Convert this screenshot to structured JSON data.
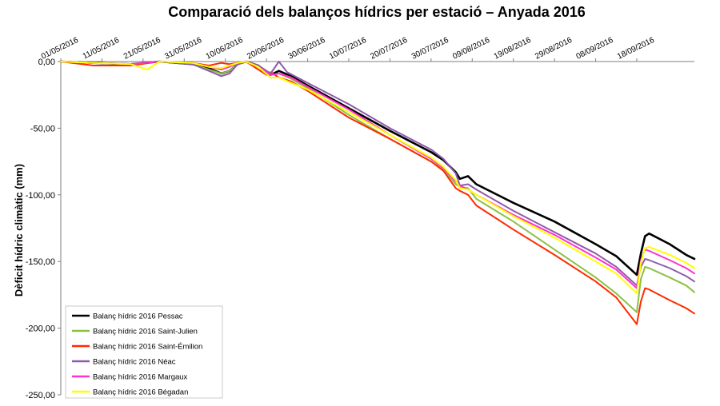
{
  "chart_data": {
    "type": "line",
    "title": "Comparació dels balanços hídrics per estació – Anyada 2016",
    "ylabel": "Dèficit hídric climàtic (mm)",
    "xlabel": "",
    "ylim": [
      -250,
      0
    ],
    "yticks": [
      "0,00",
      "-50,00",
      "-100,00",
      "-150,00",
      "-200,00",
      "-250,00"
    ],
    "ytick_values": [
      0,
      -50,
      -100,
      -150,
      -200,
      -250
    ],
    "xticks": [
      "01/05/2016",
      "11/05/2016",
      "21/05/2016",
      "31/05/2016",
      "10/06/2016",
      "20/06/2016",
      "30/06/2016",
      "10/07/2016",
      "20/07/2016",
      "30/07/2016",
      "09/08/2016",
      "19/08/2016",
      "29/08/2016",
      "08/09/2016",
      "18/09/2016"
    ],
    "grid": false,
    "legend_position": "bottom-left",
    "series": [
      {
        "name": "Balanç hídric 2016 Pessac",
        "color": "#000000",
        "width": 2.6,
        "values": [
          [
            0,
            0
          ],
          [
            8,
            -1
          ],
          [
            17,
            -2
          ],
          [
            24,
            0
          ],
          [
            32,
            -2
          ],
          [
            36,
            -5
          ],
          [
            39,
            -9
          ],
          [
            41,
            -7
          ],
          [
            43,
            -2
          ],
          [
            45,
            0
          ],
          [
            48,
            -3
          ],
          [
            51,
            -10
          ],
          [
            53,
            -7
          ],
          [
            56,
            -11
          ],
          [
            60,
            -18
          ],
          [
            70,
            -35
          ],
          [
            80,
            -52
          ],
          [
            90,
            -68
          ],
          [
            93,
            -74
          ],
          [
            96,
            -83
          ],
          [
            97,
            -88
          ],
          [
            99,
            -86
          ],
          [
            101,
            -92
          ],
          [
            110,
            -106
          ],
          [
            120,
            -120
          ],
          [
            130,
            -137
          ],
          [
            135,
            -146
          ],
          [
            140,
            -160
          ],
          [
            141,
            -144
          ],
          [
            142,
            -131
          ],
          [
            143,
            -129
          ],
          [
            148,
            -137
          ],
          [
            152,
            -145
          ],
          [
            154,
            -148
          ]
        ]
      },
      {
        "name": "Balanç hídric 2016 Saint-Julien",
        "color": "#8cc043",
        "width": 2.0,
        "values": [
          [
            0,
            0
          ],
          [
            8,
            -1
          ],
          [
            17,
            -2
          ],
          [
            24,
            0
          ],
          [
            32,
            -2
          ],
          [
            36,
            -6
          ],
          [
            39,
            -9
          ],
          [
            41,
            -7
          ],
          [
            43,
            -2
          ],
          [
            45,
            0
          ],
          [
            48,
            -3
          ],
          [
            51,
            -10
          ],
          [
            53,
            -9
          ],
          [
            56,
            -13
          ],
          [
            60,
            -20
          ],
          [
            70,
            -40
          ],
          [
            80,
            -58
          ],
          [
            90,
            -75
          ],
          [
            93,
            -81
          ],
          [
            96,
            -92
          ],
          [
            97,
            -94
          ],
          [
            99,
            -95
          ],
          [
            101,
            -103
          ],
          [
            110,
            -120
          ],
          [
            120,
            -141
          ],
          [
            130,
            -162
          ],
          [
            135,
            -174
          ],
          [
            140,
            -188
          ],
          [
            141,
            -163
          ],
          [
            142,
            -154
          ],
          [
            143,
            -155
          ],
          [
            148,
            -162
          ],
          [
            152,
            -168
          ],
          [
            154,
            -173
          ]
        ]
      },
      {
        "name": "Balanç hídric 2016 Saint-Émilion",
        "color": "#ff2a00",
        "width": 2.0,
        "values": [
          [
            0,
            0
          ],
          [
            8,
            -3
          ],
          [
            17,
            -3
          ],
          [
            24,
            0
          ],
          [
            32,
            -1
          ],
          [
            36,
            -3
          ],
          [
            39,
            -1
          ],
          [
            41,
            -2
          ],
          [
            43,
            -1
          ],
          [
            45,
            0
          ],
          [
            48,
            -6
          ],
          [
            50,
            -10
          ],
          [
            51,
            -8
          ],
          [
            53,
            -12
          ],
          [
            56,
            -15
          ],
          [
            60,
            -22
          ],
          [
            70,
            -42
          ],
          [
            80,
            -58
          ],
          [
            90,
            -75
          ],
          [
            93,
            -82
          ],
          [
            96,
            -95
          ],
          [
            97,
            -97
          ],
          [
            99,
            -100
          ],
          [
            101,
            -108
          ],
          [
            110,
            -126
          ],
          [
            120,
            -145
          ],
          [
            130,
            -165
          ],
          [
            135,
            -177
          ],
          [
            140,
            -197
          ],
          [
            141,
            -180
          ],
          [
            142,
            -170
          ],
          [
            143,
            -171
          ],
          [
            148,
            -179
          ],
          [
            152,
            -185
          ],
          [
            154,
            -189
          ]
        ]
      },
      {
        "name": "Balanç hídric 2016 Néac",
        "color": "#8e5aad",
        "width": 2.0,
        "values": [
          [
            0,
            0
          ],
          [
            8,
            -1
          ],
          [
            17,
            -2
          ],
          [
            24,
            0
          ],
          [
            32,
            -2
          ],
          [
            36,
            -7
          ],
          [
            39,
            -11
          ],
          [
            41,
            -9
          ],
          [
            43,
            -2
          ],
          [
            45,
            0
          ],
          [
            48,
            -3
          ],
          [
            51,
            -9
          ],
          [
            53,
            0
          ],
          [
            55,
            -8
          ],
          [
            60,
            -16
          ],
          [
            70,
            -32
          ],
          [
            80,
            -50
          ],
          [
            90,
            -66
          ],
          [
            93,
            -73
          ],
          [
            96,
            -84
          ],
          [
            97,
            -93
          ],
          [
            99,
            -92
          ],
          [
            101,
            -96
          ],
          [
            110,
            -112
          ],
          [
            120,
            -128
          ],
          [
            130,
            -144
          ],
          [
            135,
            -154
          ],
          [
            140,
            -168
          ],
          [
            141,
            -154
          ],
          [
            142,
            -148
          ],
          [
            143,
            -149
          ],
          [
            148,
            -155
          ],
          [
            152,
            -161
          ],
          [
            154,
            -165
          ]
        ]
      },
      {
        "name": "Balanç hídric 2016 Margaux",
        "color": "#ff33cc",
        "width": 2.0,
        "values": [
          [
            0,
            0
          ],
          [
            8,
            -1
          ],
          [
            17,
            -2
          ],
          [
            24,
            0
          ],
          [
            32,
            -1
          ],
          [
            36,
            -4
          ],
          [
            39,
            -6
          ],
          [
            41,
            -4
          ],
          [
            43,
            -1
          ],
          [
            45,
            0
          ],
          [
            48,
            -4
          ],
          [
            51,
            -10
          ],
          [
            53,
            -9
          ],
          [
            56,
            -12
          ],
          [
            60,
            -19
          ],
          [
            70,
            -36
          ],
          [
            80,
            -55
          ],
          [
            90,
            -73
          ],
          [
            93,
            -80
          ],
          [
            96,
            -90
          ],
          [
            97,
            -93
          ],
          [
            99,
            -96
          ],
          [
            101,
            -100
          ],
          [
            110,
            -115
          ],
          [
            120,
            -130
          ],
          [
            130,
            -147
          ],
          [
            135,
            -156
          ],
          [
            140,
            -170
          ],
          [
            141,
            -149
          ],
          [
            142,
            -141
          ],
          [
            143,
            -142
          ],
          [
            148,
            -149
          ],
          [
            152,
            -155
          ],
          [
            154,
            -159
          ]
        ]
      },
      {
        "name": "Balanç hídric 2016 Bégadan",
        "color": "#ffff00",
        "width": 2.0,
        "values": [
          [
            0,
            0
          ],
          [
            8,
            -1
          ],
          [
            17,
            -2
          ],
          [
            21,
            -6
          ],
          [
            24,
            0
          ],
          [
            32,
            -1
          ],
          [
            36,
            -4
          ],
          [
            39,
            -5
          ],
          [
            41,
            -3
          ],
          [
            43,
            -1
          ],
          [
            45,
            0
          ],
          [
            48,
            -4
          ],
          [
            51,
            -12
          ],
          [
            53,
            -12
          ],
          [
            56,
            -16
          ],
          [
            60,
            -21
          ],
          [
            70,
            -38
          ],
          [
            80,
            -55
          ],
          [
            90,
            -72
          ],
          [
            93,
            -79
          ],
          [
            96,
            -89
          ],
          [
            97,
            -95
          ],
          [
            99,
            -96
          ],
          [
            101,
            -100
          ],
          [
            110,
            -116
          ],
          [
            120,
            -132
          ],
          [
            130,
            -150
          ],
          [
            135,
            -159
          ],
          [
            140,
            -174
          ],
          [
            141,
            -151
          ],
          [
            142,
            -140
          ],
          [
            143,
            -139
          ],
          [
            148,
            -145
          ],
          [
            152,
            -151
          ],
          [
            154,
            -155
          ]
        ]
      }
    ]
  }
}
